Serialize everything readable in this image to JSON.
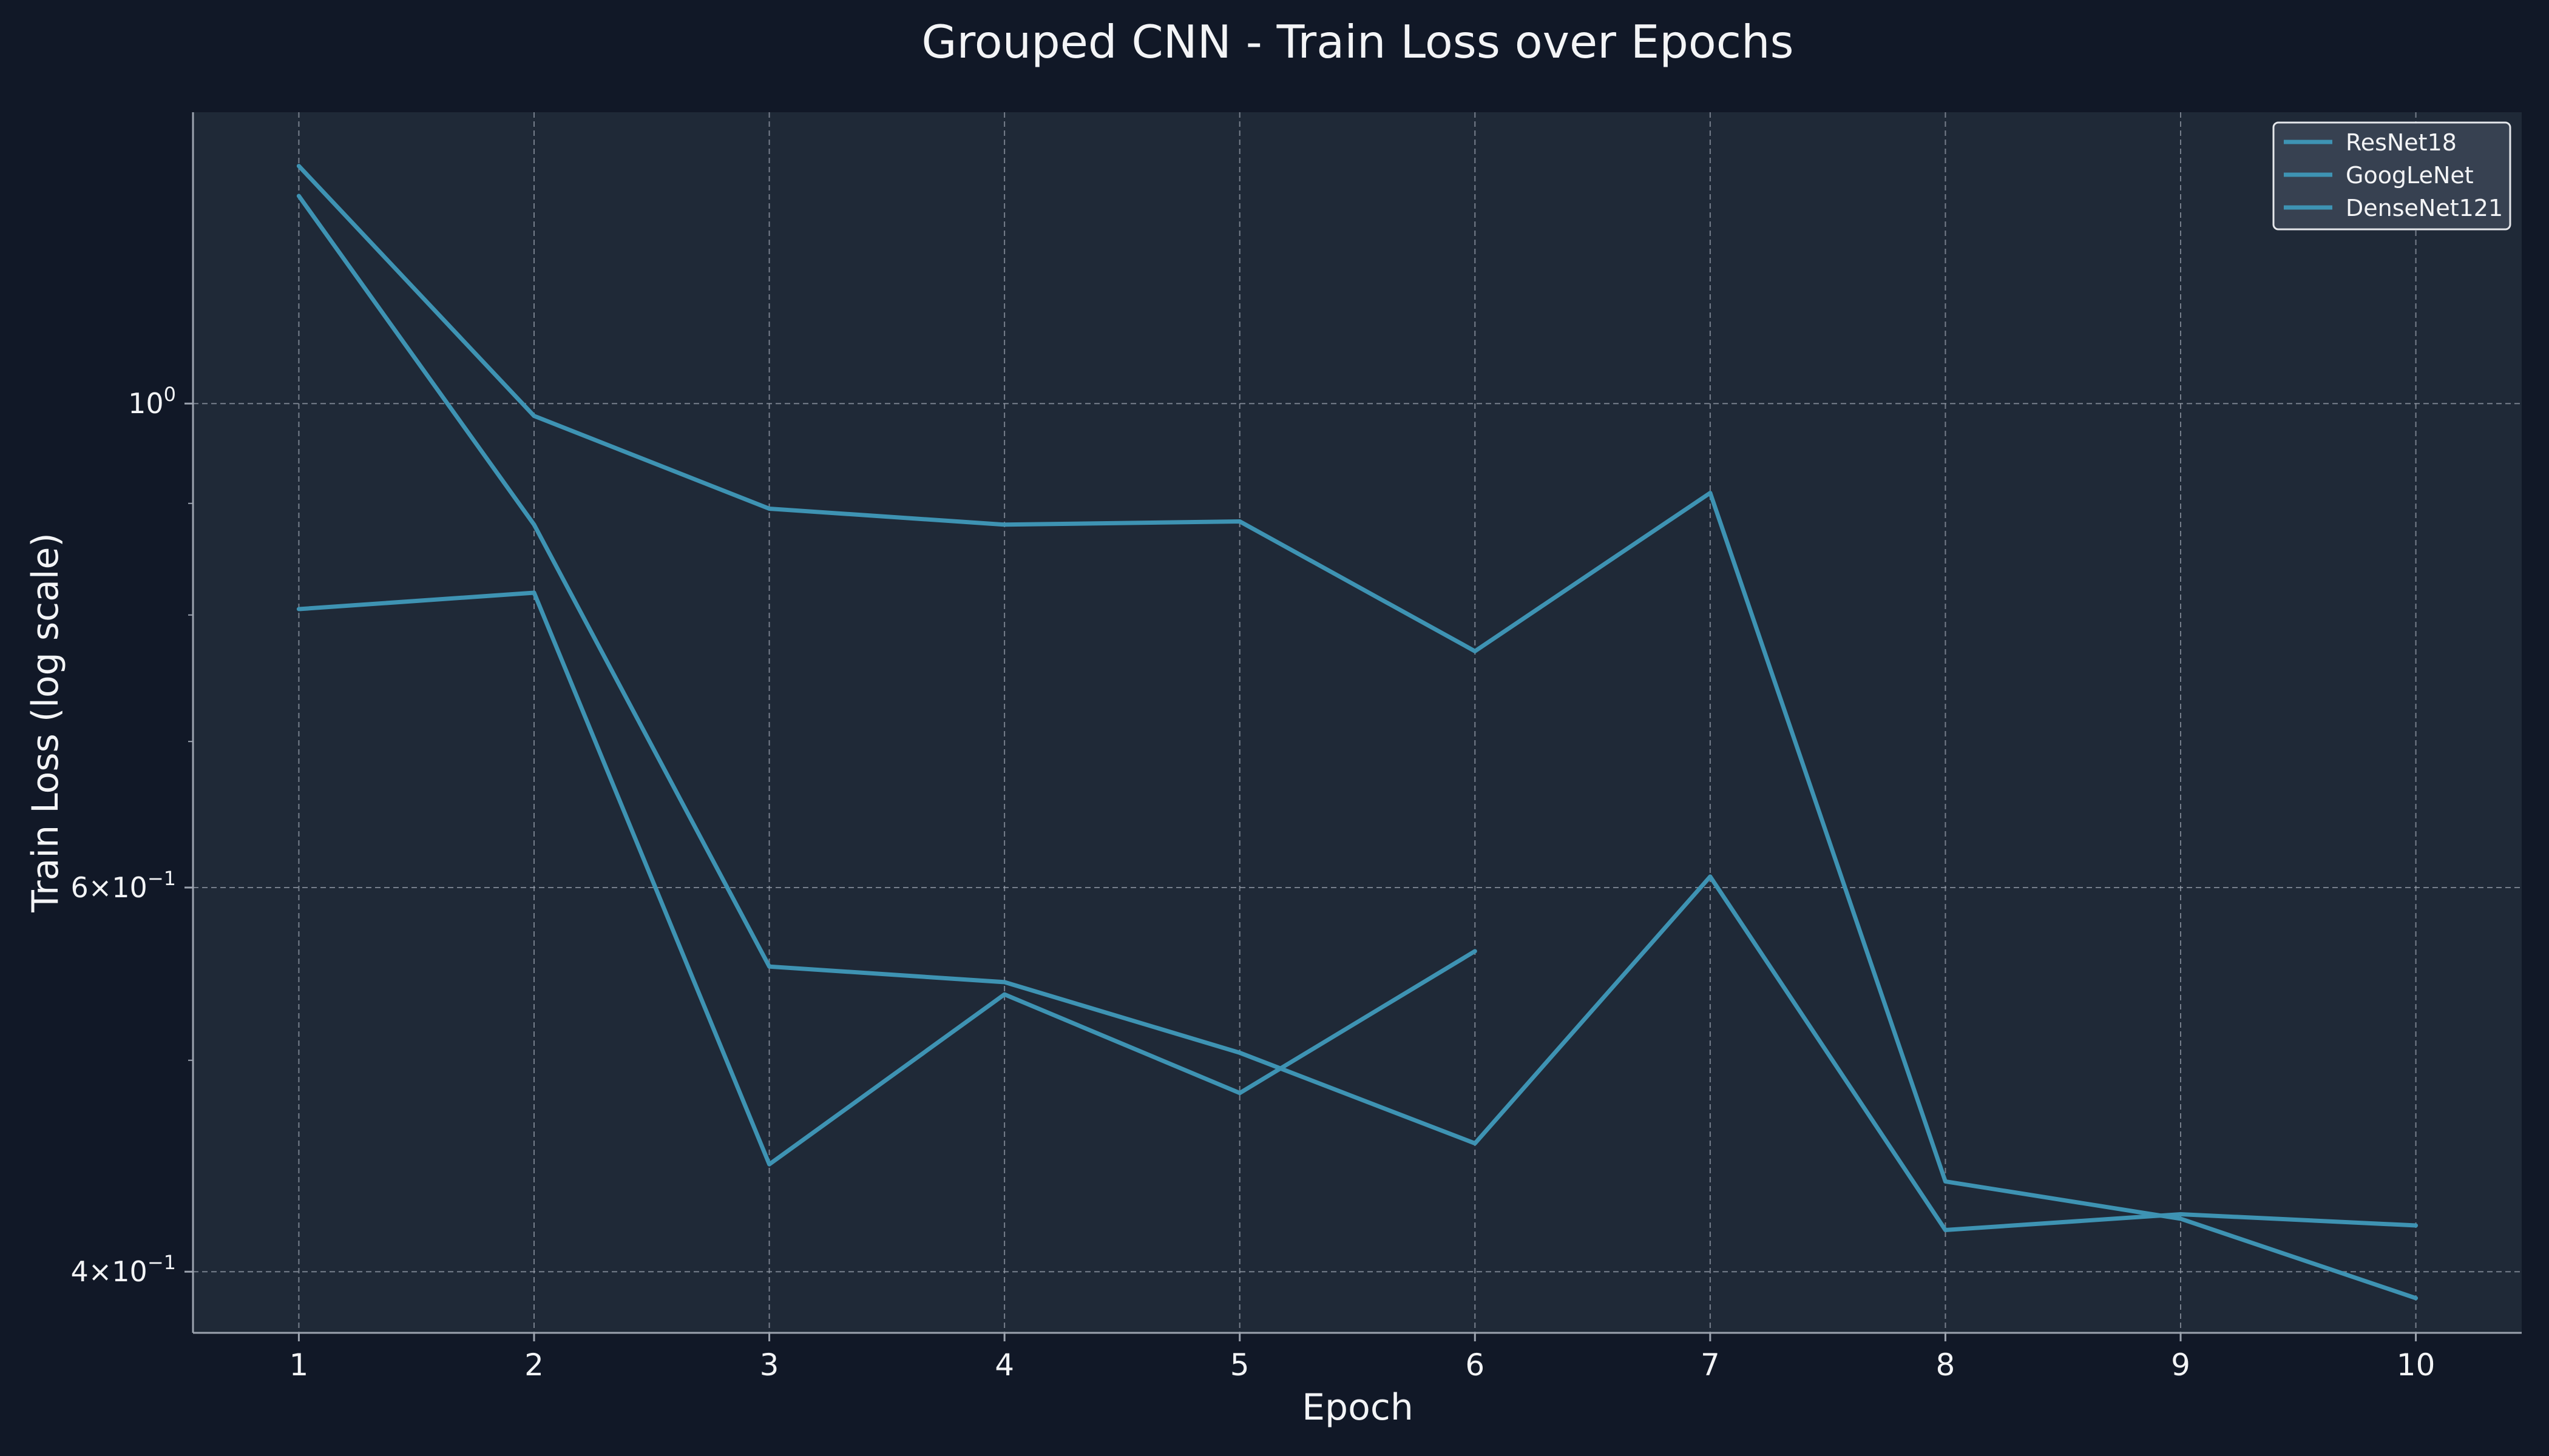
{
  "colors": {
    "background": "#111827",
    "plot_background": "#1f2937",
    "line": "#3e93b3",
    "text": "#f3f4f6",
    "grid": "#9ca3af",
    "legend_background": "#374151",
    "legend_border": "#e5e7eb"
  },
  "chart_data": {
    "type": "line",
    "title": "Grouped CNN - Train Loss over Epochs",
    "xlabel": "Epoch",
    "ylabel": "Train Loss (log scale)",
    "yscale": "log",
    "grid": true,
    "legend_position": "top-right",
    "x": [
      1,
      2,
      3,
      4,
      5,
      6,
      7,
      8,
      9,
      10
    ],
    "x_ticks": [
      "1",
      "2",
      "3",
      "4",
      "5",
      "6",
      "7",
      "8",
      "9",
      "10"
    ],
    "xlim": [
      0.55,
      10.45
    ],
    "ylim": [
      0.375,
      1.36
    ],
    "y_ticks": [
      {
        "value": 1.0,
        "mantissa": "",
        "base": "10",
        "exponent": "0"
      },
      {
        "value": 0.6,
        "mantissa": "6",
        "base": "10",
        "exponent": "−1"
      },
      {
        "value": 0.4,
        "mantissa": "4",
        "base": "10",
        "exponent": "−1"
      }
    ],
    "y_minor_ticks": [
      0.9,
      0.8,
      0.7,
      0.5
    ],
    "series": [
      {
        "name": "ResNet18",
        "values": [
          1.285,
          0.987,
          0.895,
          0.88,
          0.883,
          0.77,
          0.91,
          0.44,
          0.423,
          0.389
        ]
      },
      {
        "name": "GoogLeNet",
        "values": [
          1.245,
          0.88,
          0.552,
          0.543,
          0.504,
          0.458,
          0.607,
          0.418,
          0.425,
          0.42
        ]
      },
      {
        "name": "DenseNet121",
        "values": [
          0.805,
          0.819,
          0.448,
          0.536,
          0.483,
          0.561,
          null,
          null,
          null,
          null
        ]
      }
    ]
  }
}
